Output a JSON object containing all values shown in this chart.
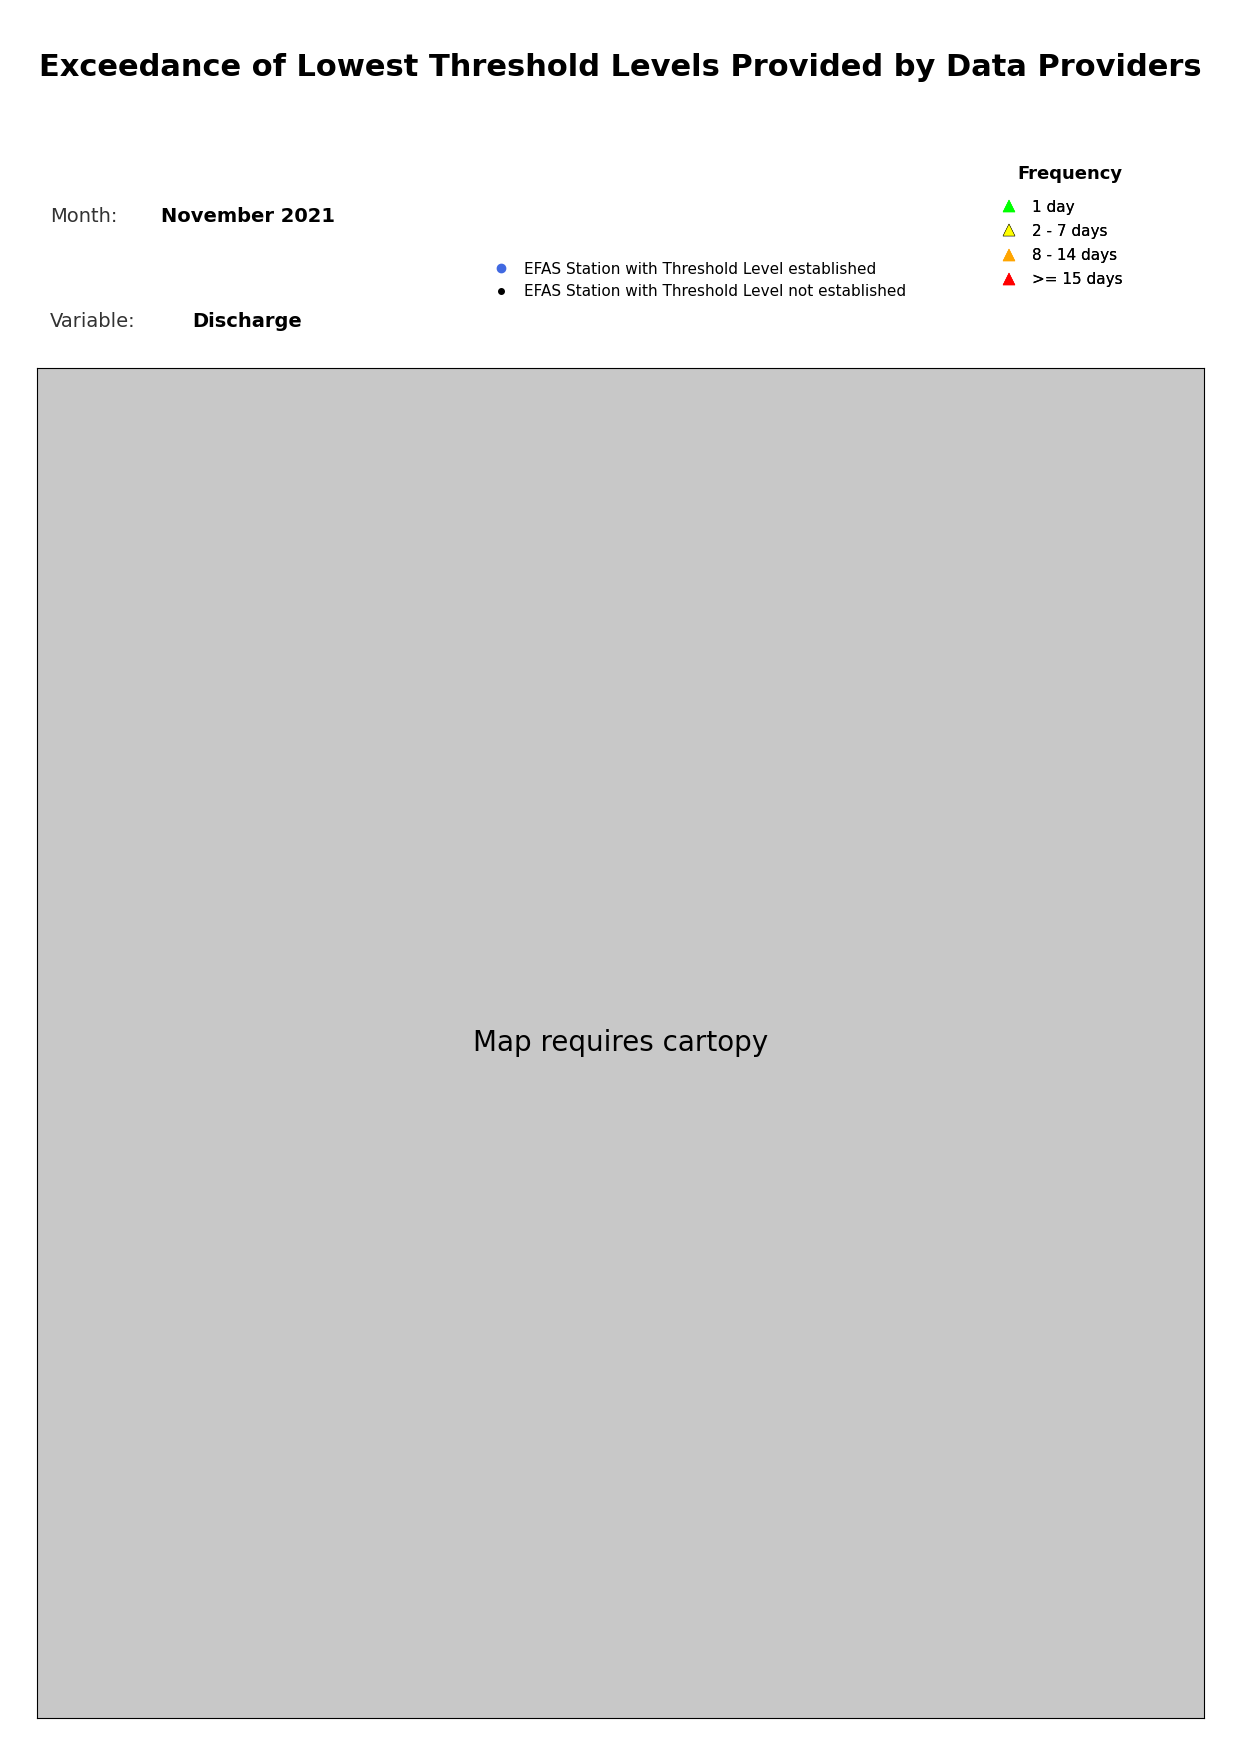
{
  "title": "Exceedance of Lowest Threshold Levels Provided by Data Providers",
  "title_fontsize": 22,
  "title_fontweight": "bold",
  "month_label": "Month:",
  "month_value": "November 2021",
  "variable_label": "Variable:",
  "variable_value": "Discharge",
  "legend_title": "Frequency",
  "legend_items": [
    {
      "label": "1 day",
      "color": "#00FF00",
      "marker": "^"
    },
    {
      "label": "2 - 7 days",
      "color": "#FFFF00",
      "marker": "^"
    },
    {
      "label": "8 - 14 days",
      "color": "#FFA500",
      "marker": "^"
    },
    {
      "label": ">= 15 days",
      "color": "#FF0000",
      "marker": "^"
    }
  ],
  "station_legend": [
    {
      "label": "EFAS Station with Threshold Level established",
      "color": "#4169E1",
      "marker": "o"
    },
    {
      "label": "EFAS Station with Threshold Level not established",
      "color": "#000000",
      "marker": "o"
    }
  ],
  "map_extent": [
    -25,
    45,
    34,
    72
  ],
  "background_color": "#ffffff",
  "map_facecolor": "#d3d3d3",
  "water_color": "#b0c4de"
}
